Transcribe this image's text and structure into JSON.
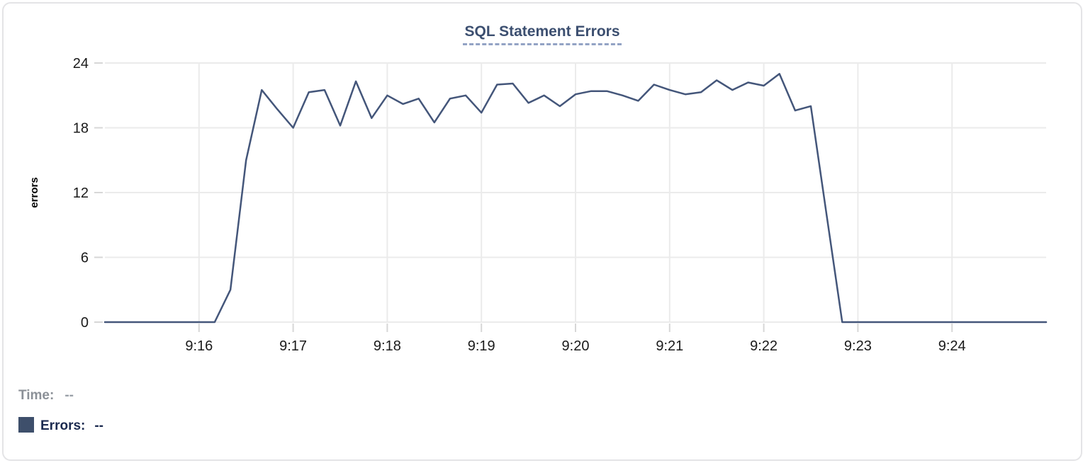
{
  "footer": {
    "time_label": "Time:",
    "time_value": "--",
    "errors_label": "Errors:",
    "errors_value": "--"
  },
  "colors": {
    "line": "#44567a",
    "legend_swatch": "#3e4f6b",
    "grid": "#ebebeb",
    "tick_mark": "#d7d7d7",
    "tick_label": "#1a1a1a",
    "axis_label": "#000000",
    "title": "#3c4f70",
    "title_underline": "#93a3c4",
    "time_text": "#8b9097",
    "errors_text": "#1c2b50",
    "card_border": "#e4e4e6"
  },
  "chart_data": {
    "type": "line",
    "title": "SQL Statement Errors",
    "xlabel": "",
    "ylabel": "errors",
    "ylim": [
      0,
      24
    ],
    "yticks": [
      0,
      6,
      12,
      18,
      24
    ],
    "grid": true,
    "legend_position": "bottom-left",
    "x_start_time": "9:15:00",
    "x_end_time": "9:25:00",
    "x_span_seconds": [
      0,
      600
    ],
    "sample_interval_seconds": 10,
    "xticks": [
      {
        "label": "9:16",
        "t": 60
      },
      {
        "label": "9:17",
        "t": 120
      },
      {
        "label": "9:18",
        "t": 180
      },
      {
        "label": "9:19",
        "t": 240
      },
      {
        "label": "9:20",
        "t": 300
      },
      {
        "label": "9:21",
        "t": 360
      },
      {
        "label": "9:22",
        "t": 420
      },
      {
        "label": "9:23",
        "t": 480
      },
      {
        "label": "9:24",
        "t": 540
      }
    ],
    "series": [
      {
        "name": "Errors",
        "color": "#44567a",
        "points": [
          [
            0,
            0
          ],
          [
            10,
            0
          ],
          [
            20,
            0
          ],
          [
            30,
            0
          ],
          [
            40,
            0
          ],
          [
            50,
            0
          ],
          [
            60,
            0
          ],
          [
            70,
            0
          ],
          [
            80,
            3
          ],
          [
            90,
            15
          ],
          [
            100,
            21.5
          ],
          [
            110,
            19.7
          ],
          [
            120,
            18
          ],
          [
            130,
            21.3
          ],
          [
            140,
            21.5
          ],
          [
            150,
            18.2
          ],
          [
            160,
            22.3
          ],
          [
            170,
            18.9
          ],
          [
            180,
            21
          ],
          [
            190,
            20.2
          ],
          [
            200,
            20.7
          ],
          [
            210,
            18.5
          ],
          [
            220,
            20.7
          ],
          [
            230,
            21
          ],
          [
            240,
            19.4
          ],
          [
            250,
            22
          ],
          [
            260,
            22.1
          ],
          [
            270,
            20.3
          ],
          [
            280,
            21
          ],
          [
            290,
            20
          ],
          [
            300,
            21.1
          ],
          [
            310,
            21.4
          ],
          [
            320,
            21.4
          ],
          [
            330,
            21
          ],
          [
            340,
            20.5
          ],
          [
            350,
            22
          ],
          [
            360,
            21.5
          ],
          [
            370,
            21.1
          ],
          [
            380,
            21.3
          ],
          [
            390,
            22.4
          ],
          [
            400,
            21.5
          ],
          [
            410,
            22.2
          ],
          [
            420,
            21.9
          ],
          [
            430,
            23
          ],
          [
            440,
            19.6
          ],
          [
            450,
            20
          ],
          [
            460,
            10
          ],
          [
            470,
            0
          ],
          [
            480,
            0
          ],
          [
            490,
            0
          ],
          [
            500,
            0
          ],
          [
            510,
            0
          ],
          [
            520,
            0
          ],
          [
            530,
            0
          ],
          [
            540,
            0
          ],
          [
            550,
            0
          ],
          [
            560,
            0
          ],
          [
            570,
            0
          ],
          [
            580,
            0
          ],
          [
            590,
            0
          ],
          [
            600,
            0
          ]
        ]
      }
    ]
  }
}
